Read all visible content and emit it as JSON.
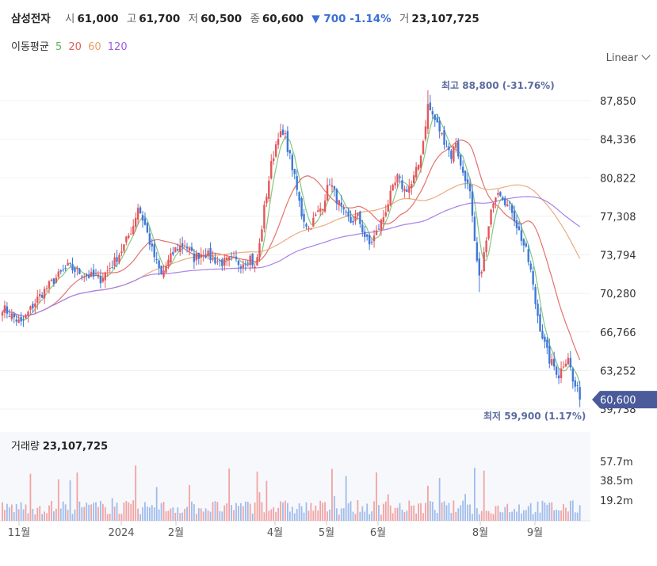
{
  "header": {
    "name": "삼성전자",
    "open_label": "시",
    "open": "61,000",
    "high_label": "고",
    "high": "61,700",
    "low_label": "저",
    "low": "60,500",
    "close_label": "종",
    "close": "60,600",
    "change": "▼ 700 -1.14%",
    "volume_label": "거",
    "volume": "23,107,725"
  },
  "ma_legend": {
    "title": "이동평균",
    "periods": [
      {
        "label": "5",
        "color": "#5bb55b"
      },
      {
        "label": "20",
        "color": "#e0605a"
      },
      {
        "label": "60",
        "color": "#e3a070"
      },
      {
        "label": "120",
        "color": "#9a5de0"
      }
    ]
  },
  "scale_selector": "Linear",
  "colors": {
    "up": "#e5565a",
    "down": "#3f78d8",
    "current_price_bg": "#4a5a9a",
    "annotation": "#5a6b9f"
  },
  "chart_data": {
    "type": "candlestick",
    "price_axis": {
      "ticks": [
        "87,850",
        "84,336",
        "80,822",
        "77,308",
        "73,794",
        "70,280",
        "66,766",
        "63,252",
        "59,738"
      ],
      "min": 59738,
      "max": 87850
    },
    "x_ticks": [
      "11월",
      "2024",
      "2월",
      "4월",
      "5월",
      "6월",
      "8월",
      "9월"
    ],
    "current_price": "60,600",
    "max_annotation": "최고 88,800 (-31.76%)",
    "min_annotation": "최저 59,900 (1.17%)",
    "volume_axis": {
      "ticks": [
        "57.7m",
        "38.5m",
        "19.2m"
      ]
    },
    "volume_title": "거래량",
    "volume_value": "23,107,725",
    "close_anchors": [
      [
        0,
        69000
      ],
      [
        8,
        67500
      ],
      [
        15,
        69800
      ],
      [
        22,
        71500
      ],
      [
        28,
        72700
      ],
      [
        35,
        72000
      ],
      [
        42,
        71600
      ],
      [
        48,
        73200
      ],
      [
        52,
        74600
      ],
      [
        56,
        76500
      ],
      [
        58,
        78200
      ],
      [
        61,
        76500
      ],
      [
        64,
        74200
      ],
      [
        68,
        71900
      ],
      [
        70,
        72800
      ],
      [
        74,
        74300
      ],
      [
        78,
        74800
      ],
      [
        82,
        73500
      ],
      [
        86,
        74100
      ],
      [
        90,
        73400
      ],
      [
        94,
        73100
      ],
      [
        98,
        73300
      ],
      [
        102,
        73000
      ],
      [
        106,
        73600
      ],
      [
        108,
        72500
      ],
      [
        110,
        74700
      ],
      [
        112,
        78000
      ],
      [
        115,
        82000
      ],
      [
        118,
        84800
      ],
      [
        121,
        84500
      ],
      [
        124,
        81800
      ],
      [
        128,
        77500
      ],
      [
        131,
        76200
      ],
      [
        134,
        77300
      ],
      [
        137,
        78400
      ],
      [
        140,
        80500
      ],
      [
        143,
        78900
      ],
      [
        146,
        77500
      ],
      [
        149,
        76800
      ],
      [
        152,
        77300
      ],
      [
        155,
        75500
      ],
      [
        157,
        74700
      ],
      [
        160,
        75800
      ],
      [
        163,
        77300
      ],
      [
        166,
        79200
      ],
      [
        169,
        80800
      ],
      [
        172,
        79700
      ],
      [
        175,
        80200
      ],
      [
        178,
        82000
      ],
      [
        180,
        84200
      ],
      [
        182,
        87400
      ],
      [
        185,
        86100
      ],
      [
        188,
        84700
      ],
      [
        190,
        83800
      ],
      [
        192,
        82800
      ],
      [
        194,
        84200
      ],
      [
        196,
        81800
      ],
      [
        198,
        80900
      ],
      [
        200,
        79300
      ],
      [
        202,
        74700
      ],
      [
        204,
        71500
      ],
      [
        206,
        73800
      ],
      [
        208,
        76200
      ],
      [
        210,
        78900
      ],
      [
        212,
        79800
      ],
      [
        214,
        79200
      ],
      [
        216,
        78300
      ],
      [
        218,
        77900
      ],
      [
        220,
        76500
      ],
      [
        222,
        75300
      ],
      [
        224,
        74100
      ],
      [
        226,
        72300
      ],
      [
        228,
        69400
      ],
      [
        230,
        67200
      ],
      [
        232,
        65600
      ],
      [
        234,
        64200
      ],
      [
        236,
        63600
      ],
      [
        238,
        62800
      ],
      [
        240,
        63900
      ],
      [
        242,
        64600
      ],
      [
        244,
        62200
      ],
      [
        246,
        61400
      ],
      [
        247,
        60600
      ]
    ]
  }
}
